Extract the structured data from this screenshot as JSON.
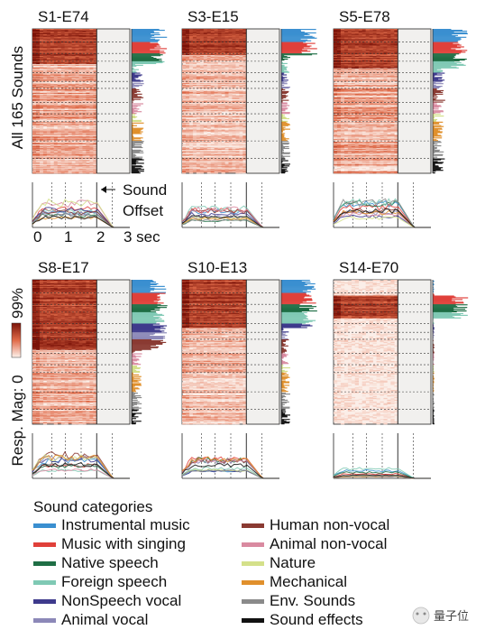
{
  "panels": [
    {
      "title": "S1-E74",
      "strong": [
        0,
        40
      ],
      "base": 0.35
    },
    {
      "title": "S3-E15",
      "strong": [
        0,
        30
      ],
      "base": 0.25
    },
    {
      "title": "S5-E78",
      "strong": [
        0,
        45
      ],
      "base": 0.35
    },
    {
      "title": "S8-E17",
      "strong": [
        0,
        80
      ],
      "base": 0.3
    },
    {
      "title": "S10-E13",
      "strong": [
        0,
        55
      ],
      "base": 0.25
    },
    {
      "title": "S14-E70",
      "strong": [
        18,
        44
      ],
      "base": 0.05
    }
  ],
  "left_axis_label": "All 165 Sounds",
  "colorbar": {
    "label": "Resp. Mag: 0",
    "max_label": "99%"
  },
  "sound_offset_label": [
    "Sound",
    "Offset"
  ],
  "time_axis": {
    "ticks": [
      "0",
      "1",
      "2",
      "3 sec"
    ]
  },
  "legend": {
    "title": "Sound categories",
    "items": [
      {
        "label": "Instrumental music",
        "color": "#3a8fd0"
      },
      {
        "label": "Music with singing",
        "color": "#e0403a"
      },
      {
        "label": "Native speech",
        "color": "#1f6e45"
      },
      {
        "label": "Foreign speech",
        "color": "#7fc9b4"
      },
      {
        "label": "NonSpeech vocal",
        "color": "#3e3a8c"
      },
      {
        "label": "Animal vocal",
        "color": "#8c88b8"
      },
      {
        "label": "Human non-vocal",
        "color": "#8a3a32"
      },
      {
        "label": "Animal non-vocal",
        "color": "#d98aa0"
      },
      {
        "label": "Nature",
        "color": "#d4e08a"
      },
      {
        "label": "Mechanical",
        "color": "#e0902c"
      },
      {
        "label": "Env. Sounds",
        "color": "#8a8a8a"
      },
      {
        "label": "Sound effects",
        "color": "#111111"
      }
    ]
  },
  "watermark": "量子位"
}
